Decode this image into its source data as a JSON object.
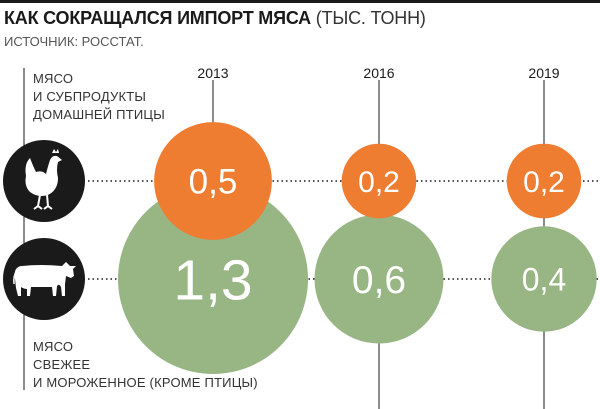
{
  "header": {
    "title_bold": "КАК СОКРАЩАЛСЯ ИМПОРТ МЯСА",
    "title_unit": "(ТЫС. ТОНН)",
    "source": "ИСТОЧНИК: РОССТАТ."
  },
  "categories": {
    "poultry_label_lines": [
      "МЯСО",
      "И СУБПРОДУКТЫ",
      "ДОМАШНЕЙ ПТИЦЫ"
    ],
    "meat_label_lines": [
      "МЯСО",
      "СВЕЖЕЕ",
      "И МОРОЖЕННОЕ (КРОМЕ ПТИЦЫ)"
    ]
  },
  "icons": {
    "poultry": "chicken-icon",
    "meat": "cow-icon"
  },
  "colors": {
    "poultry": "#EE7D32",
    "meat": "#98B584"
  },
  "chart_data": {
    "type": "bubble",
    "x": [
      "2013",
      "2016",
      "2019"
    ],
    "series": [
      {
        "name": "МЯСО И СУБПРОДУКТЫ ДОМАШНЕЙ ПТИЦЫ",
        "values": [
          0.5,
          0.2,
          0.2
        ],
        "labels": [
          "0,5",
          "0,2",
          "0,2"
        ]
      },
      {
        "name": "МЯСО СВЕЖЕЕ И МОРОЖЕННОЕ (КРОМЕ ПТИЦЫ)",
        "values": [
          1.3,
          0.6,
          0.4
        ],
        "labels": [
          "1,3",
          "0,6",
          "0,4"
        ]
      }
    ]
  }
}
